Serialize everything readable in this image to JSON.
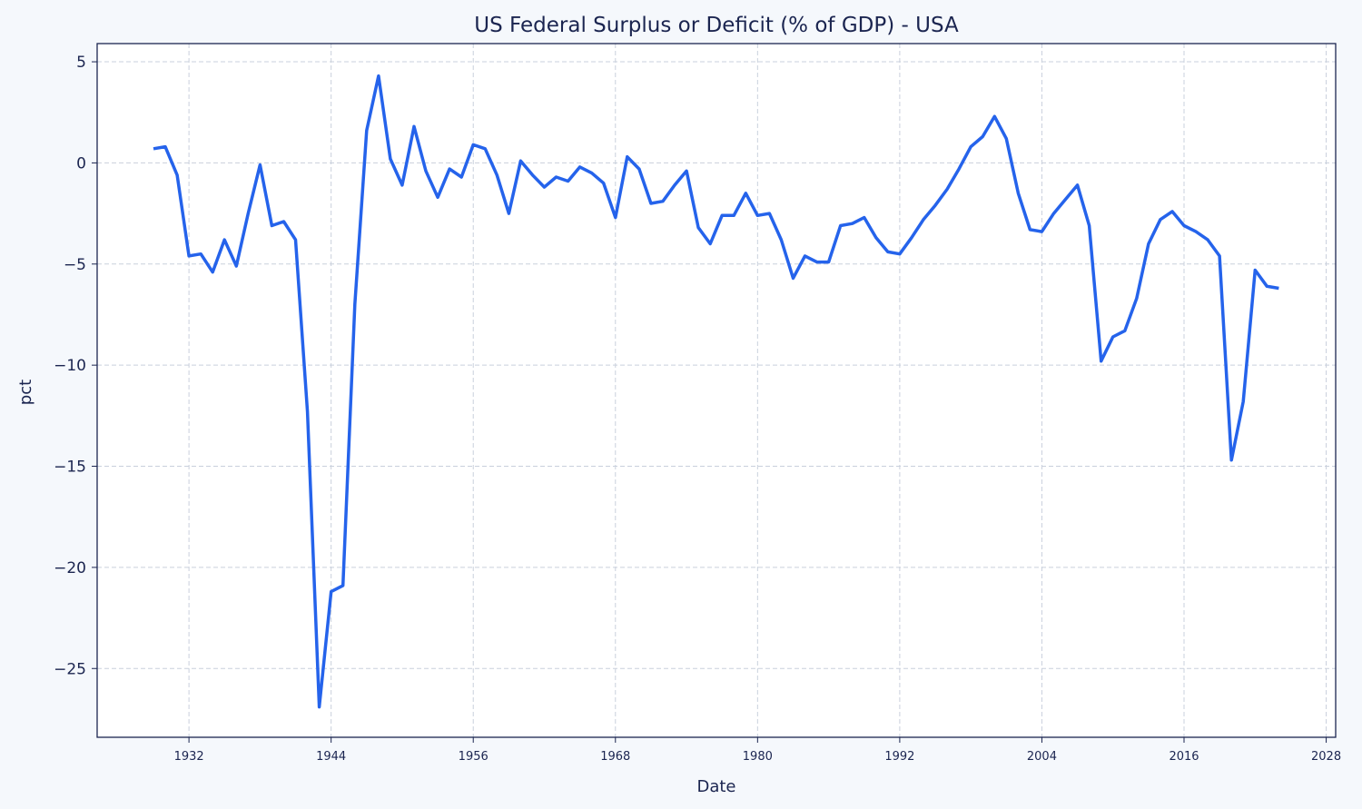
{
  "chart_data": {
    "type": "line",
    "title": "US Federal Surplus or Deficit (% of GDP) - USA",
    "xlabel": "Date",
    "ylabel": "pct",
    "xlim": [
      1924.25,
      2028.8
    ],
    "ylim": [
      -28.4,
      5.9
    ],
    "x_ticks": [
      1932,
      1944,
      1956,
      1968,
      1980,
      1992,
      2004,
      2016,
      2028
    ],
    "y_ticks": [
      5,
      0,
      -5,
      -10,
      -15,
      -20,
      -25
    ],
    "grid": true,
    "line_color": "#2563eb",
    "x": [
      1929,
      1930,
      1931,
      1932,
      1933,
      1934,
      1935,
      1936,
      1937,
      1938,
      1939,
      1940,
      1941,
      1942,
      1943,
      1944,
      1945,
      1946,
      1947,
      1948,
      1949,
      1950,
      1951,
      1952,
      1953,
      1954,
      1955,
      1956,
      1957,
      1958,
      1959,
      1960,
      1961,
      1962,
      1963,
      1964,
      1965,
      1966,
      1967,
      1968,
      1969,
      1970,
      1971,
      1972,
      1973,
      1974,
      1975,
      1976,
      1977,
      1978,
      1979,
      1980,
      1981,
      1982,
      1983,
      1984,
      1985,
      1986,
      1987,
      1988,
      1989,
      1990,
      1991,
      1992,
      1993,
      1994,
      1995,
      1996,
      1997,
      1998,
      1999,
      2000,
      2001,
      2002,
      2003,
      2004,
      2005,
      2006,
      2007,
      2008,
      2009,
      2010,
      2011,
      2012,
      2013,
      2014,
      2015,
      2016,
      2017,
      2018,
      2019,
      2020,
      2021,
      2022,
      2023,
      2024
    ],
    "values": [
      0.7,
      0.8,
      -0.6,
      -4.6,
      -4.5,
      -5.4,
      -3.8,
      -5.1,
      -2.5,
      -0.1,
      -3.1,
      -2.9,
      -3.8,
      -12.3,
      -26.9,
      -21.2,
      -20.9,
      -7.0,
      1.6,
      4.3,
      0.2,
      -1.1,
      1.8,
      -0.4,
      -1.7,
      -0.3,
      -0.7,
      0.9,
      0.7,
      -0.6,
      -2.5,
      0.1,
      -0.6,
      -1.2,
      -0.7,
      -0.9,
      -0.2,
      -0.5,
      -1.0,
      -2.7,
      0.3,
      -0.3,
      -2.0,
      -1.9,
      -1.1,
      -0.4,
      -3.2,
      -4.0,
      -2.6,
      -2.6,
      -1.5,
      -2.6,
      -2.5,
      -3.8,
      -5.7,
      -4.6,
      -4.9,
      -4.9,
      -3.1,
      -3.0,
      -2.7,
      -3.7,
      -4.4,
      -4.5,
      -3.7,
      -2.8,
      -2.1,
      -1.3,
      -0.3,
      0.8,
      1.3,
      2.3,
      1.2,
      -1.5,
      -3.3,
      -3.4,
      -2.5,
      -1.8,
      -1.1,
      -3.1,
      -9.8,
      -8.6,
      -8.3,
      -6.7,
      -4.0,
      -2.8,
      -2.4,
      -3.1,
      -3.4,
      -3.8,
      -4.6,
      -14.7,
      -11.8,
      -5.3,
      -6.1,
      -6.2
    ]
  }
}
